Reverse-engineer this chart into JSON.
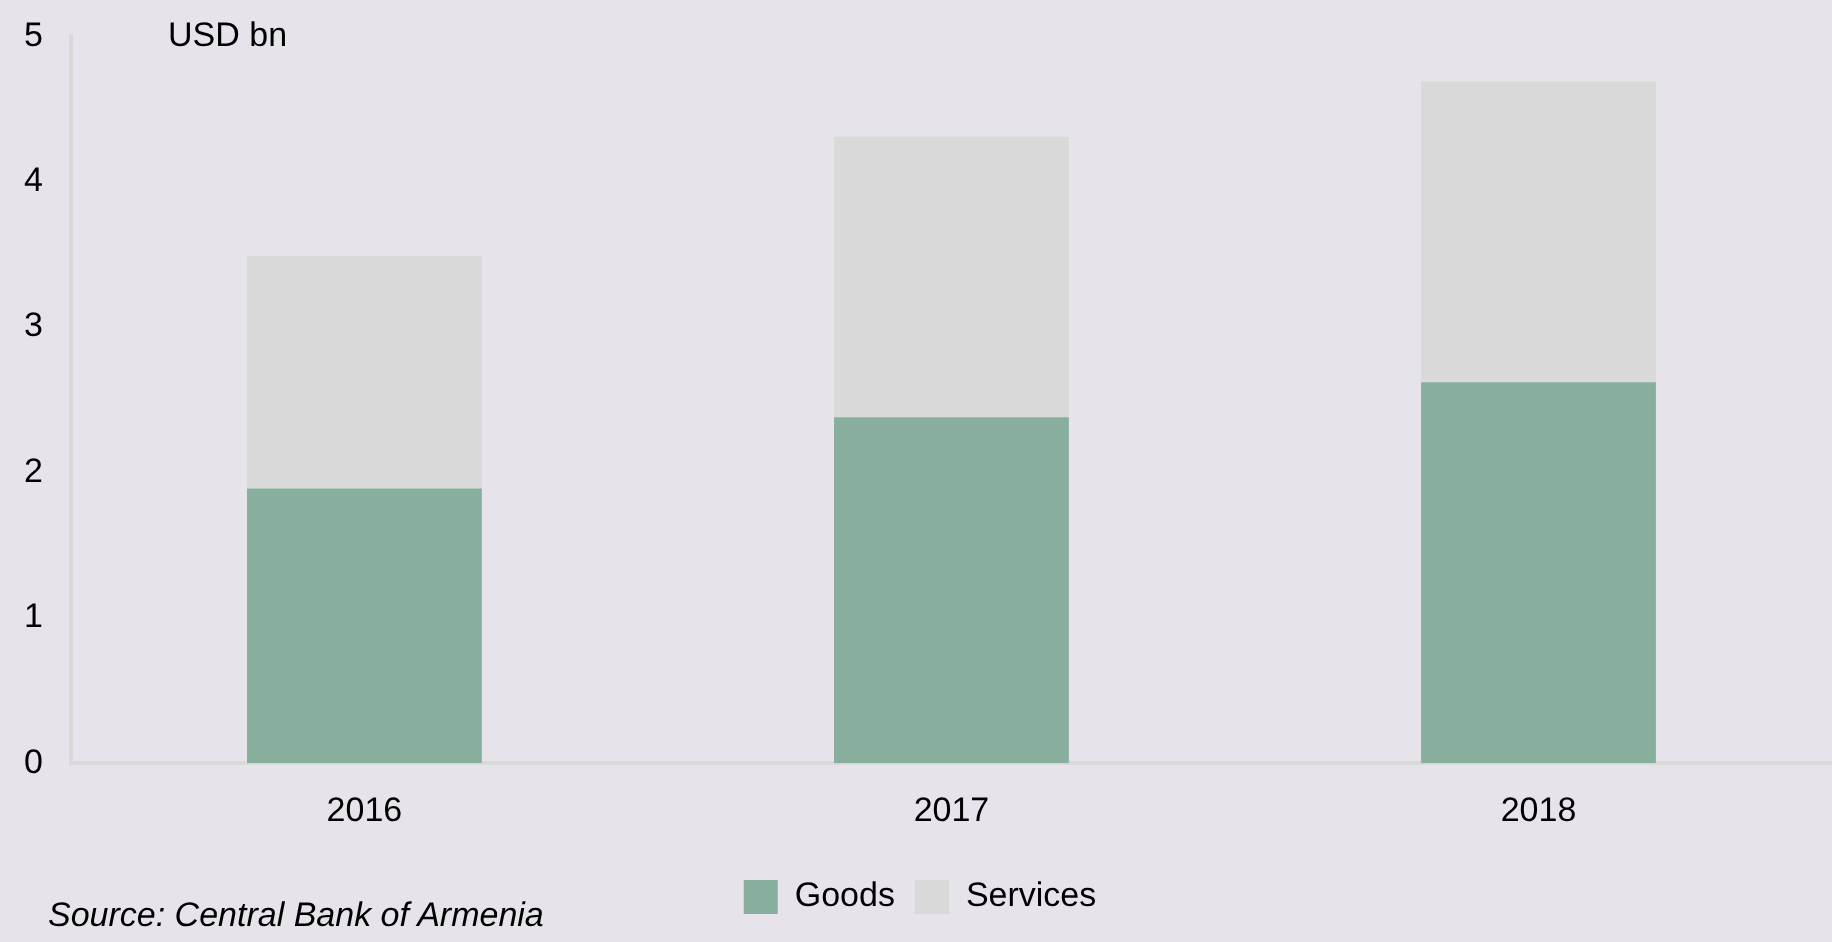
{
  "chart_data": {
    "type": "bar",
    "ylabel": "USD bn",
    "categories": [
      "2016",
      "2017",
      "2018"
    ],
    "series": [
      {
        "name": "Goods",
        "color": "#88ae9e",
        "values": [
          1.89,
          2.38,
          2.62
        ]
      },
      {
        "name": "Services",
        "color": "#d9d9d9",
        "values": [
          1.6,
          1.93,
          2.07
        ]
      }
    ],
    "stacked": true,
    "ylim": [
      0,
      5
    ],
    "yticks": [
      0,
      1,
      2,
      3,
      4,
      5
    ],
    "grid": false,
    "legend": "bottom",
    "annotations": [
      "Source: Central Bank of Armenia"
    ]
  }
}
